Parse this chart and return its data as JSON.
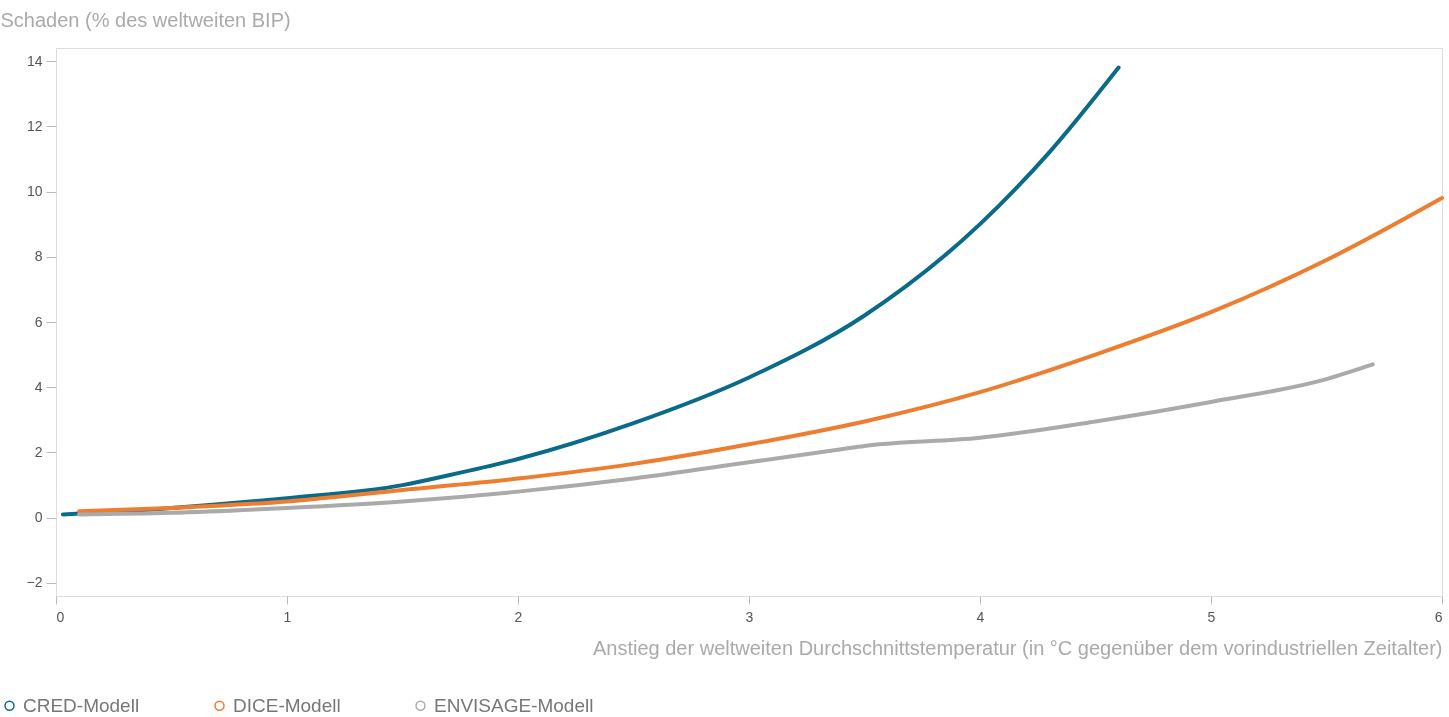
{
  "chart_data": {
    "type": "line",
    "ylabel": "Schaden (% des weltweiten BIP)",
    "xlabel": "Anstieg der weltweiten Durchschnittstemperatur (in °C gegenüber dem vorindustriellen Zeitalter)",
    "xlim": [
      0,
      6
    ],
    "xticks": [
      0,
      1,
      2,
      3,
      4,
      5,
      6
    ],
    "ylim": [
      -2.4,
      14.4
    ],
    "yticks": [
      -2,
      0,
      2,
      4,
      6,
      8,
      10,
      12,
      14
    ],
    "grid": false,
    "legend": "bottom left",
    "marker": "none",
    "line_style": "solid",
    "series": [
      {
        "name": "CRED-Modell",
        "color": "#0a6a8a",
        "x": [
          0.03,
          0.5,
          1,
          1.5,
          1.7,
          2,
          2.5,
          3,
          3.5,
          4,
          4.3,
          4.6
        ],
        "values": [
          0.1,
          0.3,
          0.6,
          1.0,
          1.3,
          1.8,
          2.9,
          4.3,
          6.2,
          9.0,
          11.2,
          13.8
        ]
      },
      {
        "name": "DICE-Modell",
        "color": "#ee7d2f",
        "x": [
          0.1,
          0.5,
          1,
          1.5,
          2,
          2.5,
          3,
          3.5,
          4,
          4.5,
          5,
          5.5,
          6
        ],
        "values": [
          0.2,
          0.3,
          0.5,
          0.85,
          1.2,
          1.65,
          2.25,
          2.95,
          3.85,
          5.0,
          6.3,
          7.9,
          9.8
        ]
      },
      {
        "name": "ENVISAGE-Modell",
        "color": "#aaaaaa",
        "x": [
          0.1,
          0.5,
          1,
          1.5,
          2,
          2.5,
          3,
          3.4,
          3.5,
          4,
          4.5,
          5,
          5.5,
          5.7
        ],
        "values": [
          0.1,
          0.15,
          0.3,
          0.5,
          0.8,
          1.2,
          1.7,
          2.1,
          2.2,
          2.45,
          2.95,
          3.55,
          4.25,
          4.7
        ]
      }
    ]
  }
}
